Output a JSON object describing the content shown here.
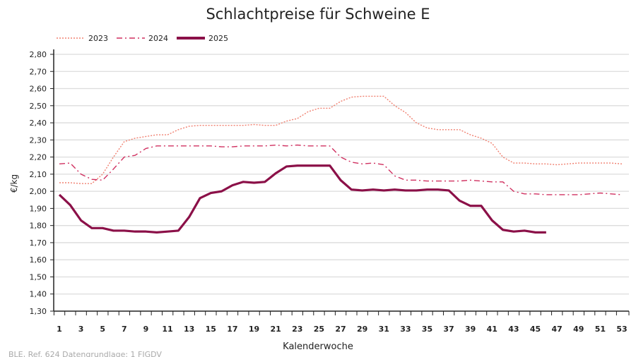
{
  "chart_data": {
    "type": "line",
    "title": "Schlachtpreise für Schweine E",
    "xlabel": "Kalenderwoche",
    "ylabel": "€/kg",
    "source": "BLE, Ref. 624 Datengrundlage: 1 FIGDV",
    "xlim": [
      1,
      53
    ],
    "ylim": [
      1.3,
      2.8
    ],
    "yticks": [
      "1,30",
      "1,40",
      "1,50",
      "1,60",
      "1,70",
      "1,80",
      "1,90",
      "2,00",
      "2,10",
      "2,20",
      "2,30",
      "2,40",
      "2,50",
      "2,60",
      "2,70",
      "2,80"
    ],
    "xticks": [
      "1",
      "3",
      "5",
      "7",
      "9",
      "11",
      "13",
      "15",
      "17",
      "19",
      "21",
      "23",
      "25",
      "27",
      "29",
      "31",
      "33",
      "35",
      "37",
      "39",
      "41",
      "43",
      "45",
      "47",
      "49",
      "51",
      "53"
    ],
    "grid": true,
    "legend": "top-left",
    "series": [
      {
        "name": "2023",
        "color": "#f08070",
        "style": "dotted",
        "values": [
          2.05,
          2.05,
          2.045,
          2.045,
          2.1,
          2.2,
          2.29,
          2.31,
          2.32,
          2.33,
          2.33,
          2.36,
          2.38,
          2.385,
          2.385,
          2.385,
          2.385,
          2.385,
          2.39,
          2.385,
          2.385,
          2.41,
          2.425,
          2.465,
          2.485,
          2.485,
          2.525,
          2.55,
          2.555,
          2.555,
          2.555,
          2.5,
          2.46,
          2.4,
          2.37,
          2.36,
          2.36,
          2.36,
          2.33,
          2.31,
          2.28,
          2.2,
          2.165,
          2.165,
          2.16,
          2.16,
          2.155,
          2.16,
          2.165,
          2.165,
          2.165,
          2.165,
          2.16
        ]
      },
      {
        "name": "2024",
        "color": "#d03060",
        "style": "dashdot",
        "values": [
          2.16,
          2.165,
          2.1,
          2.07,
          2.065,
          2.13,
          2.2,
          2.21,
          2.25,
          2.265,
          2.265,
          2.265,
          2.265,
          2.265,
          2.265,
          2.26,
          2.26,
          2.265,
          2.265,
          2.265,
          2.27,
          2.265,
          2.27,
          2.265,
          2.265,
          2.265,
          2.2,
          2.17,
          2.16,
          2.165,
          2.155,
          2.09,
          2.065,
          2.065,
          2.06,
          2.06,
          2.06,
          2.06,
          2.065,
          2.06,
          2.055,
          2.055,
          2.0,
          1.985,
          1.985,
          1.98,
          1.98,
          1.98,
          1.98,
          1.985,
          1.99,
          1.985,
          1.98
        ]
      },
      {
        "name": "2025",
        "color": "#8b1048",
        "style": "solid",
        "values": [
          1.98,
          1.92,
          1.83,
          1.785,
          1.785,
          1.77,
          1.77,
          1.765,
          1.765,
          1.76,
          1.765,
          1.77,
          1.85,
          1.96,
          1.99,
          2.0,
          2.035,
          2.055,
          2.05,
          2.055,
          2.105,
          2.145,
          2.15,
          2.15,
          2.15,
          2.15,
          2.065,
          2.01,
          2.005,
          2.01,
          2.005,
          2.01,
          2.005,
          2.005,
          2.01,
          2.01,
          2.005,
          1.945,
          1.915,
          1.915,
          1.83,
          1.775,
          1.765,
          1.77,
          1.76,
          1.76
        ]
      }
    ]
  }
}
